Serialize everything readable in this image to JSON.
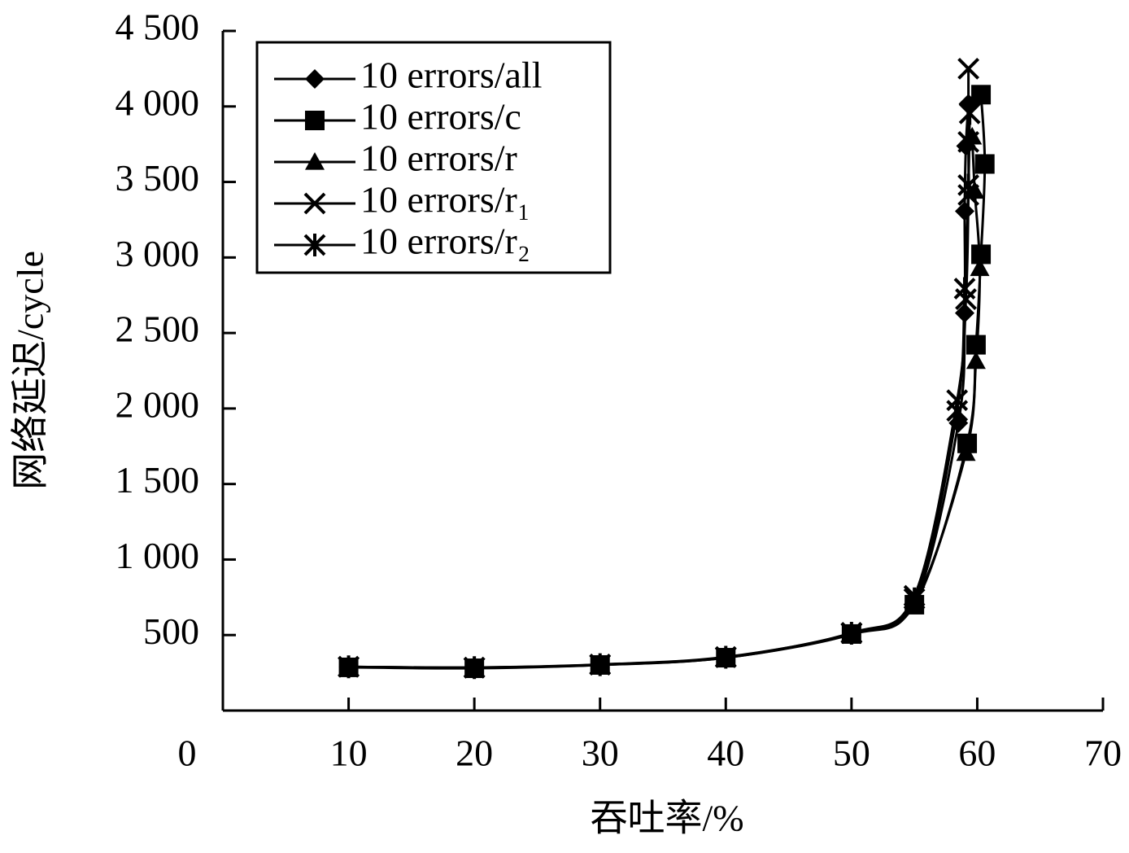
{
  "chart_data": {
    "type": "line",
    "xlabel": "吞吐率/%",
    "ylabel": "网络延迟/cycle",
    "xlim": [
      0,
      70
    ],
    "xticks": [
      0,
      10,
      20,
      30,
      40,
      50,
      60,
      70
    ],
    "ylim": [
      0,
      4500
    ],
    "yticks": [
      {
        "value": 500,
        "label": "500"
      },
      {
        "value": 1000,
        "label": "1 000"
      },
      {
        "value": 1500,
        "label": "1 500"
      },
      {
        "value": 2000,
        "label": "2 000"
      },
      {
        "value": 2500,
        "label": "2 500"
      },
      {
        "value": 3000,
        "label": "3 000"
      },
      {
        "value": 3500,
        "label": "3 500"
      },
      {
        "value": 4000,
        "label": "4 000"
      },
      {
        "value": 4500,
        "label": "4 500"
      }
    ],
    "legend": "upper left",
    "series": [
      {
        "name": "10 errors/all",
        "marker": "diamond",
        "color": "#000000",
        "x": [
          10,
          20,
          30,
          40,
          50,
          55,
          58.5,
          59.0,
          59.0,
          59.1,
          59.3
        ],
        "values": [
          290,
          285,
          302,
          350,
          505,
          715,
          1904,
          2632,
          3306,
          3738,
          4018
        ]
      },
      {
        "name": "10 errors/c",
        "marker": "square",
        "color": "#000000",
        "x": [
          10,
          20,
          30,
          40,
          50,
          55,
          59.2,
          59.9,
          60.3,
          60.6,
          60.3
        ],
        "values": [
          286,
          280,
          302,
          350,
          507,
          701,
          1769,
          2422,
          3021,
          3619,
          4078
        ]
      },
      {
        "name": "10 errors/r",
        "marker": "triangle",
        "color": "#000000",
        "x": [
          10,
          20,
          30,
          40,
          50,
          55,
          59.1,
          59.9,
          60.2,
          59.8,
          59.6
        ],
        "values": [
          288,
          283,
          303,
          352,
          510,
          720,
          1705,
          2314,
          2929,
          3441,
          3800
        ]
      },
      {
        "name": "10 errors/r₁",
        "marker": "x",
        "color": "#000000",
        "x": [
          10,
          20,
          30,
          40,
          50,
          55,
          58.4,
          59.1,
          59.3,
          59.3,
          59.3
        ],
        "values": [
          290,
          285,
          305,
          355,
          515,
          760,
          2055,
          2724,
          3414,
          3765,
          4250
        ]
      },
      {
        "name": "10 errors/r₂",
        "marker": "star",
        "color": "#000000",
        "x": [
          10,
          20,
          30,
          40,
          50,
          55,
          58.4,
          59.0,
          59.3,
          59.4
        ],
        "values": [
          290,
          284,
          304,
          353,
          512,
          740,
          1985,
          2794,
          3479,
          3954
        ]
      }
    ]
  }
}
